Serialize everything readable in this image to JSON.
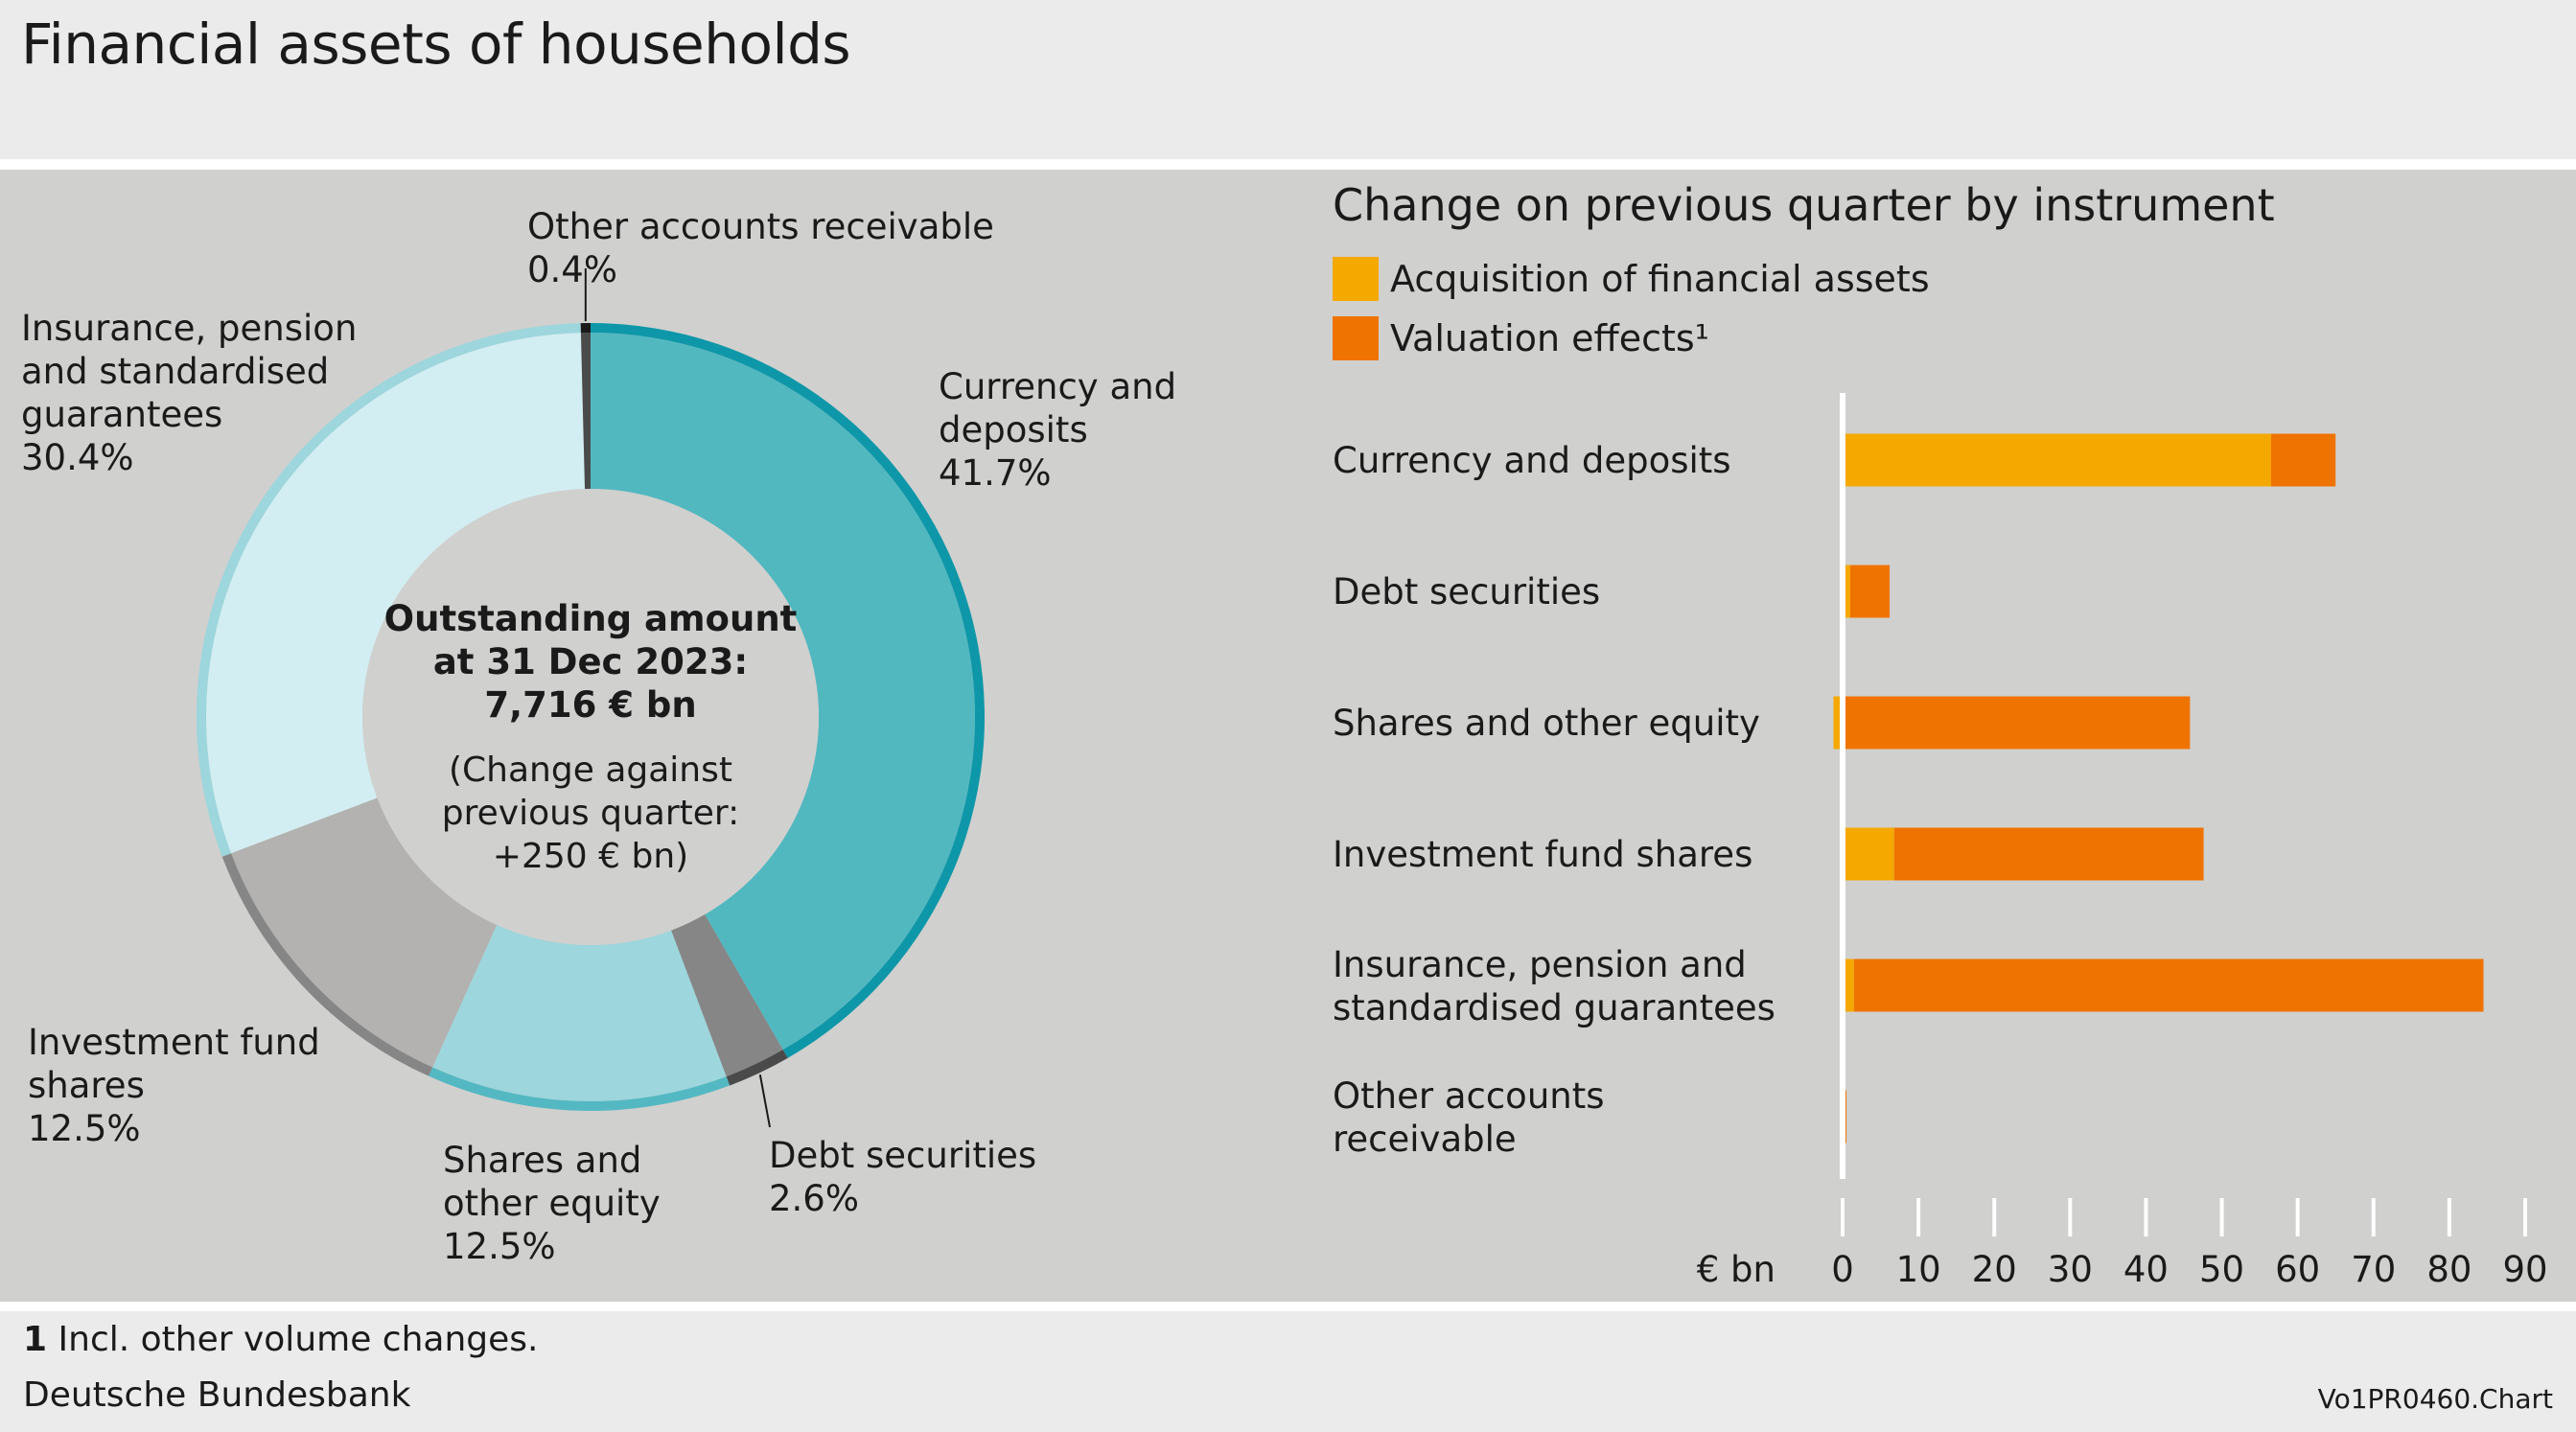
{
  "page": {
    "title": "Financial assets of households",
    "footnote_number": "1",
    "footnote_text": "Incl. other volume changes.",
    "source": "Deutsche Bundesbank",
    "code": "Vo1PR0460.Chart"
  },
  "chart_data": [
    {
      "type": "pie",
      "center_lines": [
        "Outstanding amount",
        "at 31 Dec 2023:",
        "7,716 € bn"
      ],
      "center_sub_lines": [
        "(Change against",
        "previous quarter:",
        "+250 € bn)"
      ],
      "slices": [
        {
          "label_lines": [
            "Currency and",
            "deposits"
          ],
          "value_label": "41.7%",
          "value": 41.7,
          "fill": "#52b8c0",
          "edge": "#0e97a8"
        },
        {
          "label_lines": [
            "Debt securities"
          ],
          "value_label": "2.6%",
          "value": 2.6,
          "fill": "#868686",
          "edge": "#4a4a4a"
        },
        {
          "label_lines": [
            "Shares and",
            "other equity"
          ],
          "value_label": "12.5%",
          "value": 12.5,
          "fill": "#9dd6dc",
          "edge": "#54b8c2"
        },
        {
          "label_lines": [
            "Investment fund",
            "shares"
          ],
          "value_label": "12.5%",
          "value": 12.5,
          "fill": "#b3b2b1",
          "edge": "#868686"
        },
        {
          "label_lines": [
            "Insurance, pension",
            "and standardised",
            "guarantees"
          ],
          "value_label": "30.4%",
          "value": 30.4,
          "fill": "#d2eef2",
          "edge": "#9dd6dc"
        },
        {
          "label_lines": [
            "Other accounts receivable"
          ],
          "value_label": "0.4%",
          "value": 0.4,
          "fill": "#4a4a4a",
          "edge": "#1a1a1a"
        }
      ]
    },
    {
      "type": "bar",
      "orientation": "horizontal",
      "stacked": true,
      "title": "Change on previous quarter by instrument",
      "unit_label": "€ bn",
      "xlim": [
        0,
        90
      ],
      "xticks": [
        0,
        10,
        20,
        30,
        40,
        50,
        60,
        70,
        80,
        90
      ],
      "categories": [
        [
          "Currency and deposits"
        ],
        [
          "Debt securities"
        ],
        [
          "Shares and other equity"
        ],
        [
          "Investment fund shares"
        ],
        [
          "Insurance, pension and",
          "standardised guarantees"
        ],
        [
          "Other accounts",
          "receivable"
        ]
      ],
      "series": [
        {
          "name": "Acquisition of financial assets",
          "color": "#f5a800",
          "values": [
            56.5,
            1.0,
            -1.2,
            6.8,
            1.5,
            0.1
          ]
        },
        {
          "name": "Valuation effects¹",
          "color": "#ef7300",
          "values": [
            8.5,
            5.2,
            45.8,
            40.8,
            83.0,
            0.4
          ]
        }
      ]
    }
  ]
}
